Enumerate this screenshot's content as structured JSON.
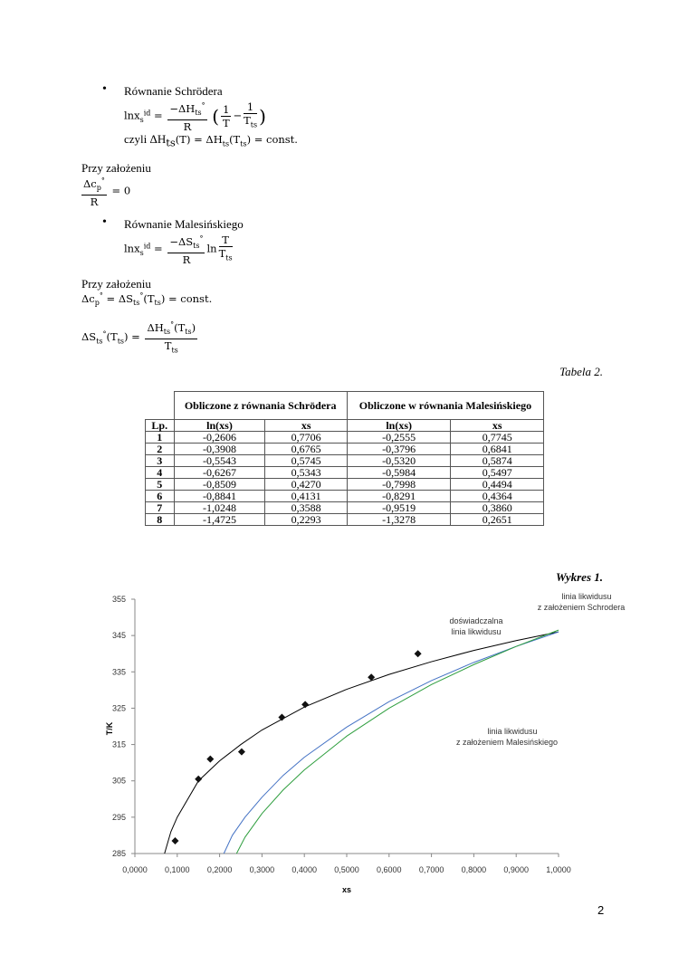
{
  "sections": {
    "schroder_bullet": "Równanie Schrödera",
    "schroder_lhs": "lnx",
    "schroder_num": "−ΔH",
    "schroder_den": "R",
    "schroder_czyli": "czyli ΔH",
    "schroder_const": "= const.",
    "assumption1": "Przy założeniu",
    "cp_num": "Δc",
    "cp_den": "R",
    "cp_eq": "= 0",
    "malesinski_bullet": "Równanie Malesińskiego",
    "mal_num": "−ΔS",
    "mal_den": "R",
    "assumption2": "Przy założeniu",
    "cp_const": "= const.",
    "ds_num": "ΔH"
  },
  "table": {
    "caption": "Tabela 2.",
    "group_headers": [
      "Obliczone z równania Schrödera",
      "Obliczone w równania Malesińskiego"
    ],
    "columns": [
      "Lp.",
      "ln(xs)",
      "xs",
      "ln(xs)",
      "xs"
    ],
    "rows": [
      [
        "1",
        "-0,2606",
        "0,7706",
        "-0,2555",
        "0,7745"
      ],
      [
        "2",
        "-0,3908",
        "0,6765",
        "-0,3796",
        "0,6841"
      ],
      [
        "3",
        "-0,5543",
        "0,5745",
        "-0,5320",
        "0,5874"
      ],
      [
        "4",
        "-0,6267",
        "0,5343",
        "-0,5984",
        "0,5497"
      ],
      [
        "5",
        "-0,8509",
        "0,4270",
        "-0,7998",
        "0,4494"
      ],
      [
        "6",
        "-0,8841",
        "0,4131",
        "-0,8291",
        "0,4364"
      ],
      [
        "7",
        "-1,0248",
        "0,3588",
        "-0,9519",
        "0,3860"
      ],
      [
        "8",
        "-1,4725",
        "0,2293",
        "-1,3278",
        "0,2651"
      ]
    ]
  },
  "chart_caption": "Wykres 1.",
  "page_number": "2",
  "chart_data": {
    "type": "scatter",
    "xlabel": "xs",
    "ylabel": "T/K",
    "xlim": [
      0,
      1
    ],
    "ylim": [
      285,
      355
    ],
    "xticks": [
      "0,0000",
      "0,1000",
      "0,2000",
      "0,3000",
      "0,4000",
      "0,5000",
      "0,6000",
      "0,7000",
      "0,8000",
      "0,9000",
      "1,0000"
    ],
    "yticks": [
      "285",
      "295",
      "305",
      "315",
      "325",
      "335",
      "345",
      "355"
    ],
    "grid": false,
    "points": [
      [
        0.095,
        288.5
      ],
      [
        0.15,
        305.5
      ],
      [
        0.178,
        311
      ],
      [
        0.252,
        313
      ],
      [
        0.347,
        322.5
      ],
      [
        0.402,
        326
      ],
      [
        0.558,
        333.5
      ],
      [
        0.668,
        340
      ]
    ],
    "series": [
      {
        "color": "#000000",
        "values": [
          [
            0.07,
            285
          ],
          [
            0.085,
            291
          ],
          [
            0.1,
            295
          ],
          [
            0.15,
            305
          ],
          [
            0.2,
            310.5
          ],
          [
            0.25,
            315
          ],
          [
            0.3,
            319
          ],
          [
            0.4,
            325.3
          ],
          [
            0.5,
            330.2
          ],
          [
            0.6,
            334.3
          ],
          [
            0.7,
            337.8
          ],
          [
            0.8,
            340.9
          ],
          [
            0.9,
            343.6
          ],
          [
            1.0,
            346
          ]
        ]
      },
      {
        "color": "#4472c4",
        "values": [
          [
            0.21,
            285
          ],
          [
            0.23,
            290
          ],
          [
            0.26,
            295
          ],
          [
            0.3,
            300.5
          ],
          [
            0.35,
            306.5
          ],
          [
            0.4,
            311.5
          ],
          [
            0.5,
            319.8
          ],
          [
            0.6,
            326.8
          ],
          [
            0.7,
            332.6
          ],
          [
            0.8,
            337.6
          ],
          [
            0.9,
            342
          ],
          [
            1.0,
            346
          ]
        ]
      },
      {
        "color": "#2e9e3e",
        "values": [
          [
            0.24,
            285
          ],
          [
            0.26,
            289.5
          ],
          [
            0.3,
            296
          ],
          [
            0.35,
            302.5
          ],
          [
            0.4,
            308
          ],
          [
            0.5,
            317.3
          ],
          [
            0.6,
            325
          ],
          [
            0.7,
            331.5
          ],
          [
            0.8,
            337
          ],
          [
            0.9,
            342
          ],
          [
            1.0,
            346.5
          ]
        ]
      }
    ],
    "annotations": [
      {
        "line1": "linia likwidusu",
        "line2": "z założeniem Schrodera"
      },
      {
        "line1": "doświadczalna",
        "line2": "linia likwidusu"
      },
      {
        "line1": "linia likwidusu",
        "line2": "z założeniem Malesińskiego"
      }
    ]
  }
}
